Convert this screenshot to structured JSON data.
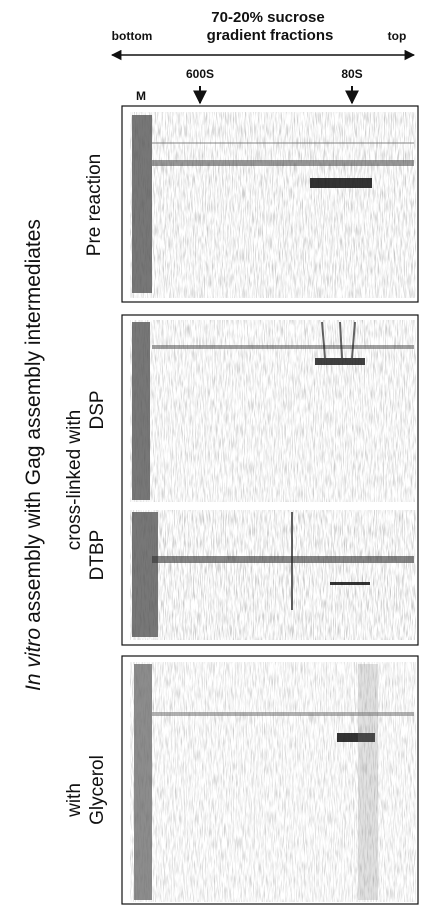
{
  "header": {
    "title_line1": "70-20% sucrose",
    "title_line2": "gradient fractions",
    "left": "bottom",
    "right": "top"
  },
  "markers": [
    "600S",
    "80S"
  ],
  "lane_label": "M",
  "panels": [
    {
      "label": "Pre reaction"
    },
    {
      "label": "cross-linked with",
      "sublabels": [
        "DSP",
        "DTBP"
      ]
    },
    {
      "label": "with",
      "label_line2": "Glycerol"
    }
  ],
  "side_title": {
    "italic": "In vitro",
    "rest": "assembly with Gag assembly intermediates"
  }
}
